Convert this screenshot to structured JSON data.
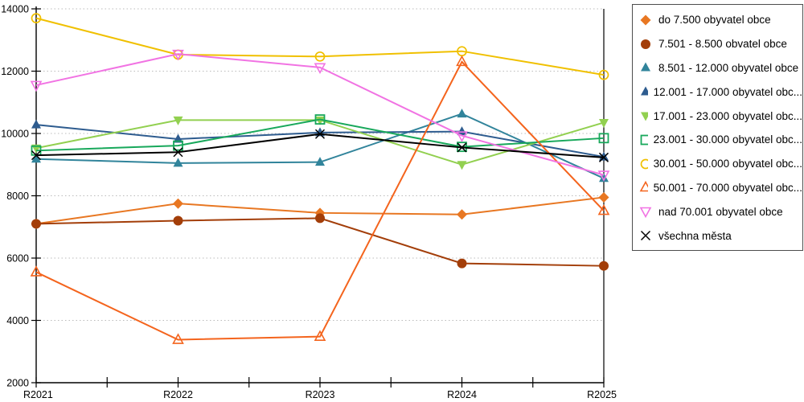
{
  "chart_data": {
    "type": "line",
    "title": "",
    "xlabel": "",
    "ylabel": "",
    "categories": [
      "R2021",
      "R2022",
      "R2023",
      "R2024",
      "R2025"
    ],
    "ylim": [
      2000,
      14000
    ],
    "ytick_interval": 2000,
    "grid": "horizontal-dotted",
    "legend_position": "right-outside",
    "series": [
      {
        "name": "do 7.500 obyvatel obce",
        "color": "#E87722",
        "marker": "diamond-filled",
        "values": [
          7100,
          7750,
          7450,
          7400,
          7950
        ]
      },
      {
        "name": "7.501 - 8.500 obvatel obce",
        "color": "#A33E09",
        "marker": "circle-filled",
        "values": [
          7100,
          7200,
          7280,
          5830,
          5750
        ]
      },
      {
        "name": "8.501 - 12.000 obyvatel obce",
        "color": "#31849B",
        "marker": "triangle-up-filled",
        "values": [
          9180,
          9050,
          9080,
          10630,
          8560
        ]
      },
      {
        "name": "12.001 - 17.000 obyvatel obc...",
        "color": "#2E5C8F",
        "marker": "triangle-up-filled",
        "values": [
          10280,
          9820,
          10030,
          10060,
          9250
        ]
      },
      {
        "name": "17.001 - 23.000 obyvatel obc...",
        "color": "#92D050",
        "marker": "triangle-down-filled",
        "values": [
          9530,
          10430,
          10430,
          9000,
          10350
        ]
      },
      {
        "name": "23.001 - 30.000 obyvatel obc...",
        "color": "#18A85B",
        "marker": "square-open",
        "values": [
          9450,
          9610,
          10450,
          9570,
          9850
        ]
      },
      {
        "name": "30.001 - 50.000 obyvatel obc...",
        "color": "#F0C000",
        "marker": "circle-open",
        "values": [
          13700,
          12530,
          12470,
          12640,
          11880
        ]
      },
      {
        "name": "50.001 - 70.000 obyvatel obc...",
        "color": "#F4641D",
        "marker": "triangle-up-open",
        "values": [
          5550,
          3380,
          3480,
          12300,
          7520
        ]
      },
      {
        "name": "nad 70.001 obyvatel obce",
        "color": "#F173E3",
        "marker": "triangle-down-open",
        "values": [
          11550,
          12550,
          12120,
          9930,
          8670
        ]
      },
      {
        "name": "všechna města",
        "color": "#000000",
        "marker": "x",
        "values": [
          9300,
          9400,
          9980,
          9550,
          9230
        ]
      }
    ],
    "colors": {
      "background": "#FFFFFF",
      "axis": "#000000",
      "grid": "#BBBBBB"
    }
  }
}
